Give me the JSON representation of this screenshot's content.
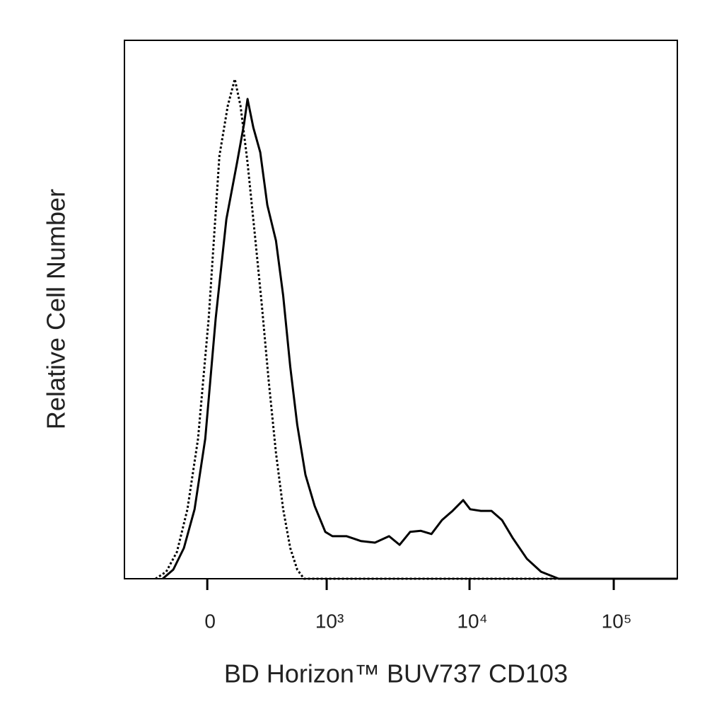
{
  "chart_data": {
    "type": "line",
    "x_label": "BD Horizon™ BUV737 CD103",
    "y_label": "Relative Cell Number",
    "xscale": "asinh",
    "xlim": [
      -530,
      276000
    ],
    "ylim": [
      0,
      100
    ],
    "xticks": [
      0,
      {
        "value": 1000,
        "label": "10³"
      },
      {
        "value": 10000,
        "label": "10⁴"
      },
      {
        "value": 100000,
        "label": "10⁵"
      }
    ],
    "series": [
      {
        "color": "#000000",
        "style": "solid",
        "x": [
          -235,
          -173,
          -116,
          -62,
          -10,
          41,
          94,
          150,
          189,
          209,
          244,
          289,
          338,
          404,
          465,
          531,
          603,
          697,
          817,
          977,
          1100,
          1390,
          1750,
          2200,
          2760,
          3270,
          3870,
          4590,
          5440,
          6440,
          7630,
          9040,
          10100,
          12000,
          14200,
          16800,
          19900,
          25000,
          31300,
          41500,
          276000
        ],
        "values": [
          0,
          1.7,
          5.7,
          12.9,
          26.0,
          48.4,
          66.8,
          77.3,
          84.5,
          89.1,
          83.8,
          79.2,
          69.4,
          62.8,
          52.6,
          39.4,
          28.6,
          19.3,
          13.5,
          8.7,
          7.9,
          7.9,
          7.0,
          6.7,
          7.9,
          6.3,
          8.7,
          8.9,
          8.3,
          10.9,
          12.6,
          14.6,
          12.9,
          12.6,
          12.6,
          10.9,
          7.6,
          3.7,
          1.3,
          0,
          0
        ]
      },
      {
        "color": "#000000",
        "style": "dotted",
        "x": [
          -280,
          -214,
          -153,
          -98,
          -45,
          7,
          59,
          101,
          138,
          169,
          209,
          253,
          299,
          349,
          404,
          465,
          531,
          603,
          680,
          276000
        ],
        "values": [
          0,
          1.3,
          5.0,
          12.9,
          26.0,
          48.4,
          78.5,
          87.8,
          92.8,
          87.8,
          77.3,
          64.1,
          51.0,
          36.5,
          23.4,
          12.9,
          5.7,
          1.7,
          0,
          0
        ]
      }
    ]
  }
}
